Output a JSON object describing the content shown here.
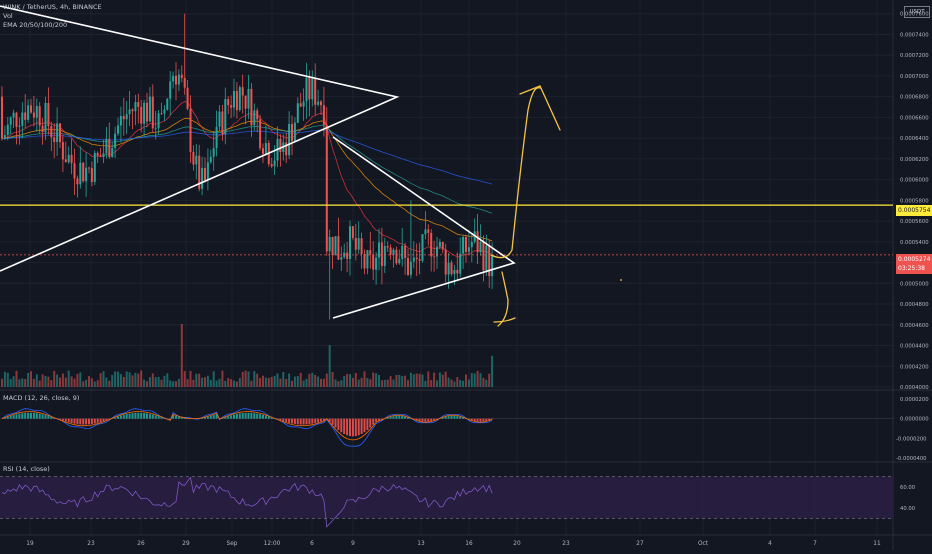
{
  "symbol_line": "WINK / TetherUS, 4h, BINANCE",
  "vol_label": "Vol",
  "ema_label": "EMA 20/50/100/200",
  "macd_label": "MACD (12, 26, close, 9)",
  "rsi_label": "RSI (14, close)",
  "currency_label": "USDT",
  "price_tag": "0.0005274",
  "countdown": "03:25:38",
  "hline_tag": "0.0005754",
  "colors": {
    "background": "#131722",
    "up": "#26a69a",
    "down": "#ef5350",
    "trend_lines": "#ffffff",
    "horizontal_level": "#ffeb3b",
    "annotations": "#f5c242",
    "macd_line": "#2962ff",
    "signal_line": "#ff6d00",
    "rsi_line": "#7e57c2",
    "rsi_band": "#2a1e44"
  },
  "chart_data": [
    {
      "type": "candlestick",
      "name": "price",
      "y_ticks": [
        "0.0007600",
        "0.0007400",
        "0.0007200",
        "0.0007000",
        "0.0006800",
        "0.0006600",
        "0.0006400",
        "0.0006200",
        "0.0006000",
        "0.0005800",
        "0.0005600",
        "0.0005400",
        "0.0005200",
        "0.0005000",
        "0.0004800",
        "0.0004600",
        "0.0004400",
        "0.0004200",
        "0.0004000"
      ],
      "ylim": [
        0.0004,
        0.0007655
      ],
      "x_tick_labels": [
        "19",
        "23",
        "26",
        "29",
        "Sep",
        "12:00",
        "6",
        "9",
        "13",
        "16",
        "20",
        "23",
        "27",
        "Oct",
        "4",
        "7",
        "11"
      ],
      "last_price": 0.0005274,
      "horizontal_level": 0.0005754,
      "ema": [
        "20",
        "50",
        "100",
        "200"
      ]
    },
    {
      "type": "bar",
      "name": "volume",
      "label": "Vol"
    },
    {
      "type": "line",
      "name": "MACD",
      "params": "12, 26, close, 9",
      "y_ticks": [
        "0.0000200",
        "0.0000000",
        "-0.0000200",
        "-0.0000400"
      ],
      "ylim": [
        -4.3e-05,
        2.3e-05
      ]
    },
    {
      "type": "line",
      "name": "RSI",
      "params": "14, close",
      "y_ticks": [
        "60.00",
        "40.00"
      ],
      "ylim": [
        17,
        83
      ],
      "bands": [
        70,
        30
      ]
    }
  ]
}
